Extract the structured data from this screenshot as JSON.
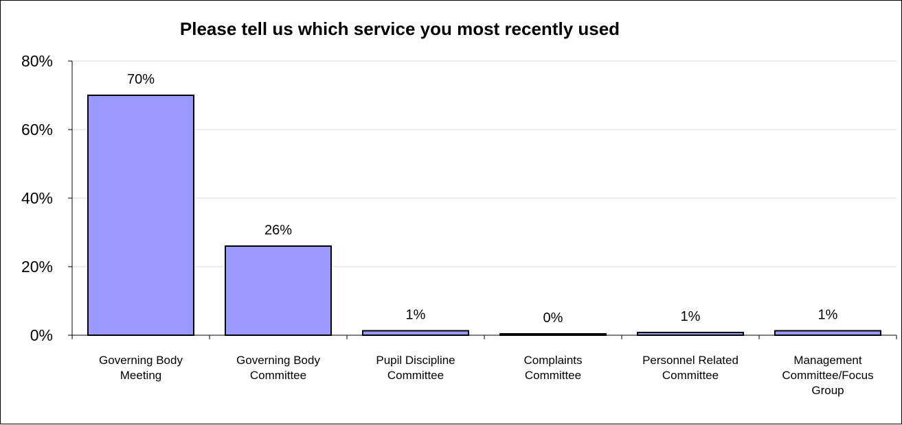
{
  "chart_data": {
    "type": "bar",
    "title": "Please tell us which service you most recently used",
    "categories": [
      [
        "Governing Body",
        "Meeting"
      ],
      [
        "Governing Body",
        "Committee"
      ],
      [
        "Pupil Discipline",
        "Committee"
      ],
      [
        "Complaints",
        "Committee"
      ],
      [
        "Personnel Related",
        "Committee"
      ],
      [
        "Management",
        "Committee/Focus",
        "Group"
      ]
    ],
    "values": [
      70,
      26,
      1.3,
      0.4,
      0.8,
      1.3
    ],
    "data_labels": [
      "70%",
      "26%",
      "1%",
      "0%",
      "1%",
      "1%"
    ],
    "ylim": [
      0,
      80
    ],
    "yticks": [
      0,
      20,
      40,
      60,
      80
    ],
    "ytick_labels": [
      "0%",
      "20%",
      "40%",
      "60%",
      "80%"
    ],
    "grid": true,
    "bar_color": "#9999ff",
    "bar_edge_color": "#000000",
    "grid_color": "#d9d9d9"
  }
}
